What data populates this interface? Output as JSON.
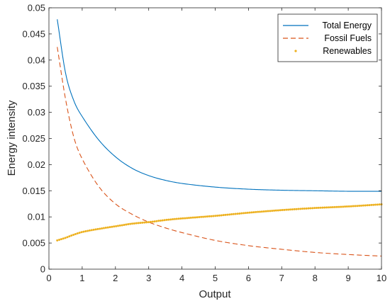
{
  "chart_data": {
    "type": "line",
    "title": "",
    "xlabel": "Output",
    "ylabel": "Energy intensity",
    "xlim": [
      0,
      10
    ],
    "ylim": [
      0,
      0.05
    ],
    "xticks": [
      "0",
      "1",
      "2",
      "3",
      "4",
      "5",
      "6",
      "7",
      "8",
      "9",
      "10"
    ],
    "yticks": [
      "0",
      "0.005",
      "0.01",
      "0.015",
      "0.02",
      "0.025",
      "0.03",
      "0.035",
      "0.04",
      "0.045",
      "0.05"
    ],
    "grid": false,
    "legend_position": "top-right",
    "series": [
      {
        "name": "Total Energy",
        "style": "solid",
        "color": "#0072BD",
        "x": [
          0.25,
          0.5,
          0.75,
          1,
          1.5,
          2,
          2.5,
          3,
          3.5,
          4,
          5,
          6,
          7,
          8,
          9,
          10
        ],
        "y": [
          0.0478,
          0.0375,
          0.0322,
          0.0292,
          0.0247,
          0.0215,
          0.0193,
          0.0179,
          0.017,
          0.0164,
          0.0157,
          0.0153,
          0.0151,
          0.015,
          0.0149,
          0.0149
        ]
      },
      {
        "name": "Fossil Fuels",
        "style": "dashed",
        "color": "#D95319",
        "x": [
          0.25,
          0.5,
          0.75,
          1,
          1.5,
          2,
          2.5,
          3,
          3.5,
          4,
          5,
          6,
          7,
          8,
          9,
          10
        ],
        "y": [
          0.0425,
          0.0325,
          0.0252,
          0.0211,
          0.0158,
          0.0125,
          0.0105,
          0.009,
          0.0079,
          0.007,
          0.0055,
          0.0045,
          0.0038,
          0.0032,
          0.0028,
          0.0025
        ]
      },
      {
        "name": "Renewables",
        "style": "dotted",
        "color": "#EDB120",
        "x": [
          0.25,
          0.5,
          0.75,
          1,
          1.5,
          2,
          2.5,
          3,
          3.5,
          4,
          5,
          6,
          7,
          8,
          9,
          10
        ],
        "y": [
          0.0055,
          0.006,
          0.0066,
          0.0071,
          0.0077,
          0.0082,
          0.0087,
          0.009,
          0.0094,
          0.0097,
          0.0102,
          0.0108,
          0.0113,
          0.0117,
          0.012,
          0.0124
        ]
      }
    ]
  }
}
